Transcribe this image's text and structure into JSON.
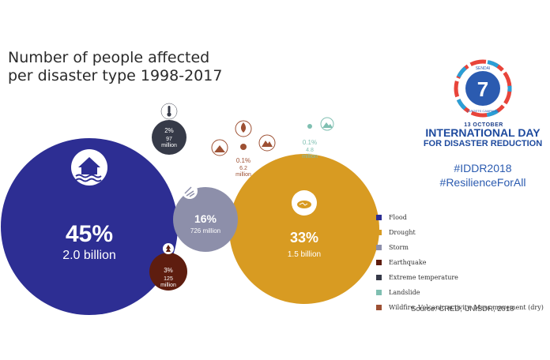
{
  "title_line1": "Number of people affected",
  "title_line2": "per disaster type 1998-2017",
  "colors": {
    "flood": "#2d2e93",
    "drought": "#d89b22",
    "storm": "#8d8faa",
    "earthquake": "#5e1d0f",
    "extreme_temperature": "#363a48",
    "landslide": "#7fbfb1",
    "wildfire": "#9d5033"
  },
  "event": {
    "logo_number": "7",
    "logo_top_text": "SENDAI",
    "logo_bottom_text": "TARGETS CAMPAIGN",
    "date": "13 OCTOBER",
    "name": "INTERNATIONAL DAY",
    "subtitle": "FOR DISASTER REDUCTION",
    "hashtags": [
      "#IDDR2018",
      "#ResilienceForAll"
    ]
  },
  "chart_data": {
    "type": "bubble",
    "title": "Number of people affected per disaster type 1998-2017",
    "series": [
      {
        "name": "Flood",
        "percent_label": "45%",
        "value_label": "2.0 billion",
        "percent": 45,
        "value_billion": 2.0,
        "color": "#2d2e93",
        "icon": "flooded-house-icon"
      },
      {
        "name": "Drought",
        "percent_label": "33%",
        "value_label": "1.5 billion",
        "percent": 33,
        "value_billion": 1.5,
        "color": "#d89b22",
        "icon": "cracked-earth-icon"
      },
      {
        "name": "Storm",
        "percent_label": "16%",
        "value_label": "726 million",
        "percent": 16,
        "value_billion": 0.726,
        "color": "#8d8faa",
        "icon": "storm-wind-icon"
      },
      {
        "name": "Earthquake",
        "percent_label": "3%",
        "value_label": "125 million",
        "percent": 3,
        "value_billion": 0.125,
        "color": "#5e1d0f",
        "icon": "cracked-tree-icon"
      },
      {
        "name": "Extreme temperature",
        "percent_label": "2%",
        "value_label": "97 million",
        "percent": 2,
        "value_billion": 0.097,
        "color": "#363a48",
        "icon": "thermometer-icon"
      },
      {
        "name": "Landslide",
        "percent_label": "0.1%",
        "value_label": "4.8 million",
        "percent": 0.1,
        "value_billion": 0.0048,
        "color": "#7fbfb1",
        "icon": "landslide-icon"
      },
      {
        "name": "Wildfire, Volcanic activity, Mass movement (dry)",
        "percent_label": "0.1%",
        "value_label": "6.2 million",
        "percent": 0.1,
        "value_billion": 0.0062,
        "color": "#9d5033",
        "icon": "wildfire-volcano-icon"
      }
    ],
    "legend": [
      "Flood",
      "Drought",
      "Storm",
      "Earthquake",
      "Extreme temperature",
      "Landslide",
      "Wildfire, Volcanic activity, Mass movement (dry)"
    ],
    "legend_position": "right",
    "source": "Source: CRED, UNISDR, 2018"
  }
}
